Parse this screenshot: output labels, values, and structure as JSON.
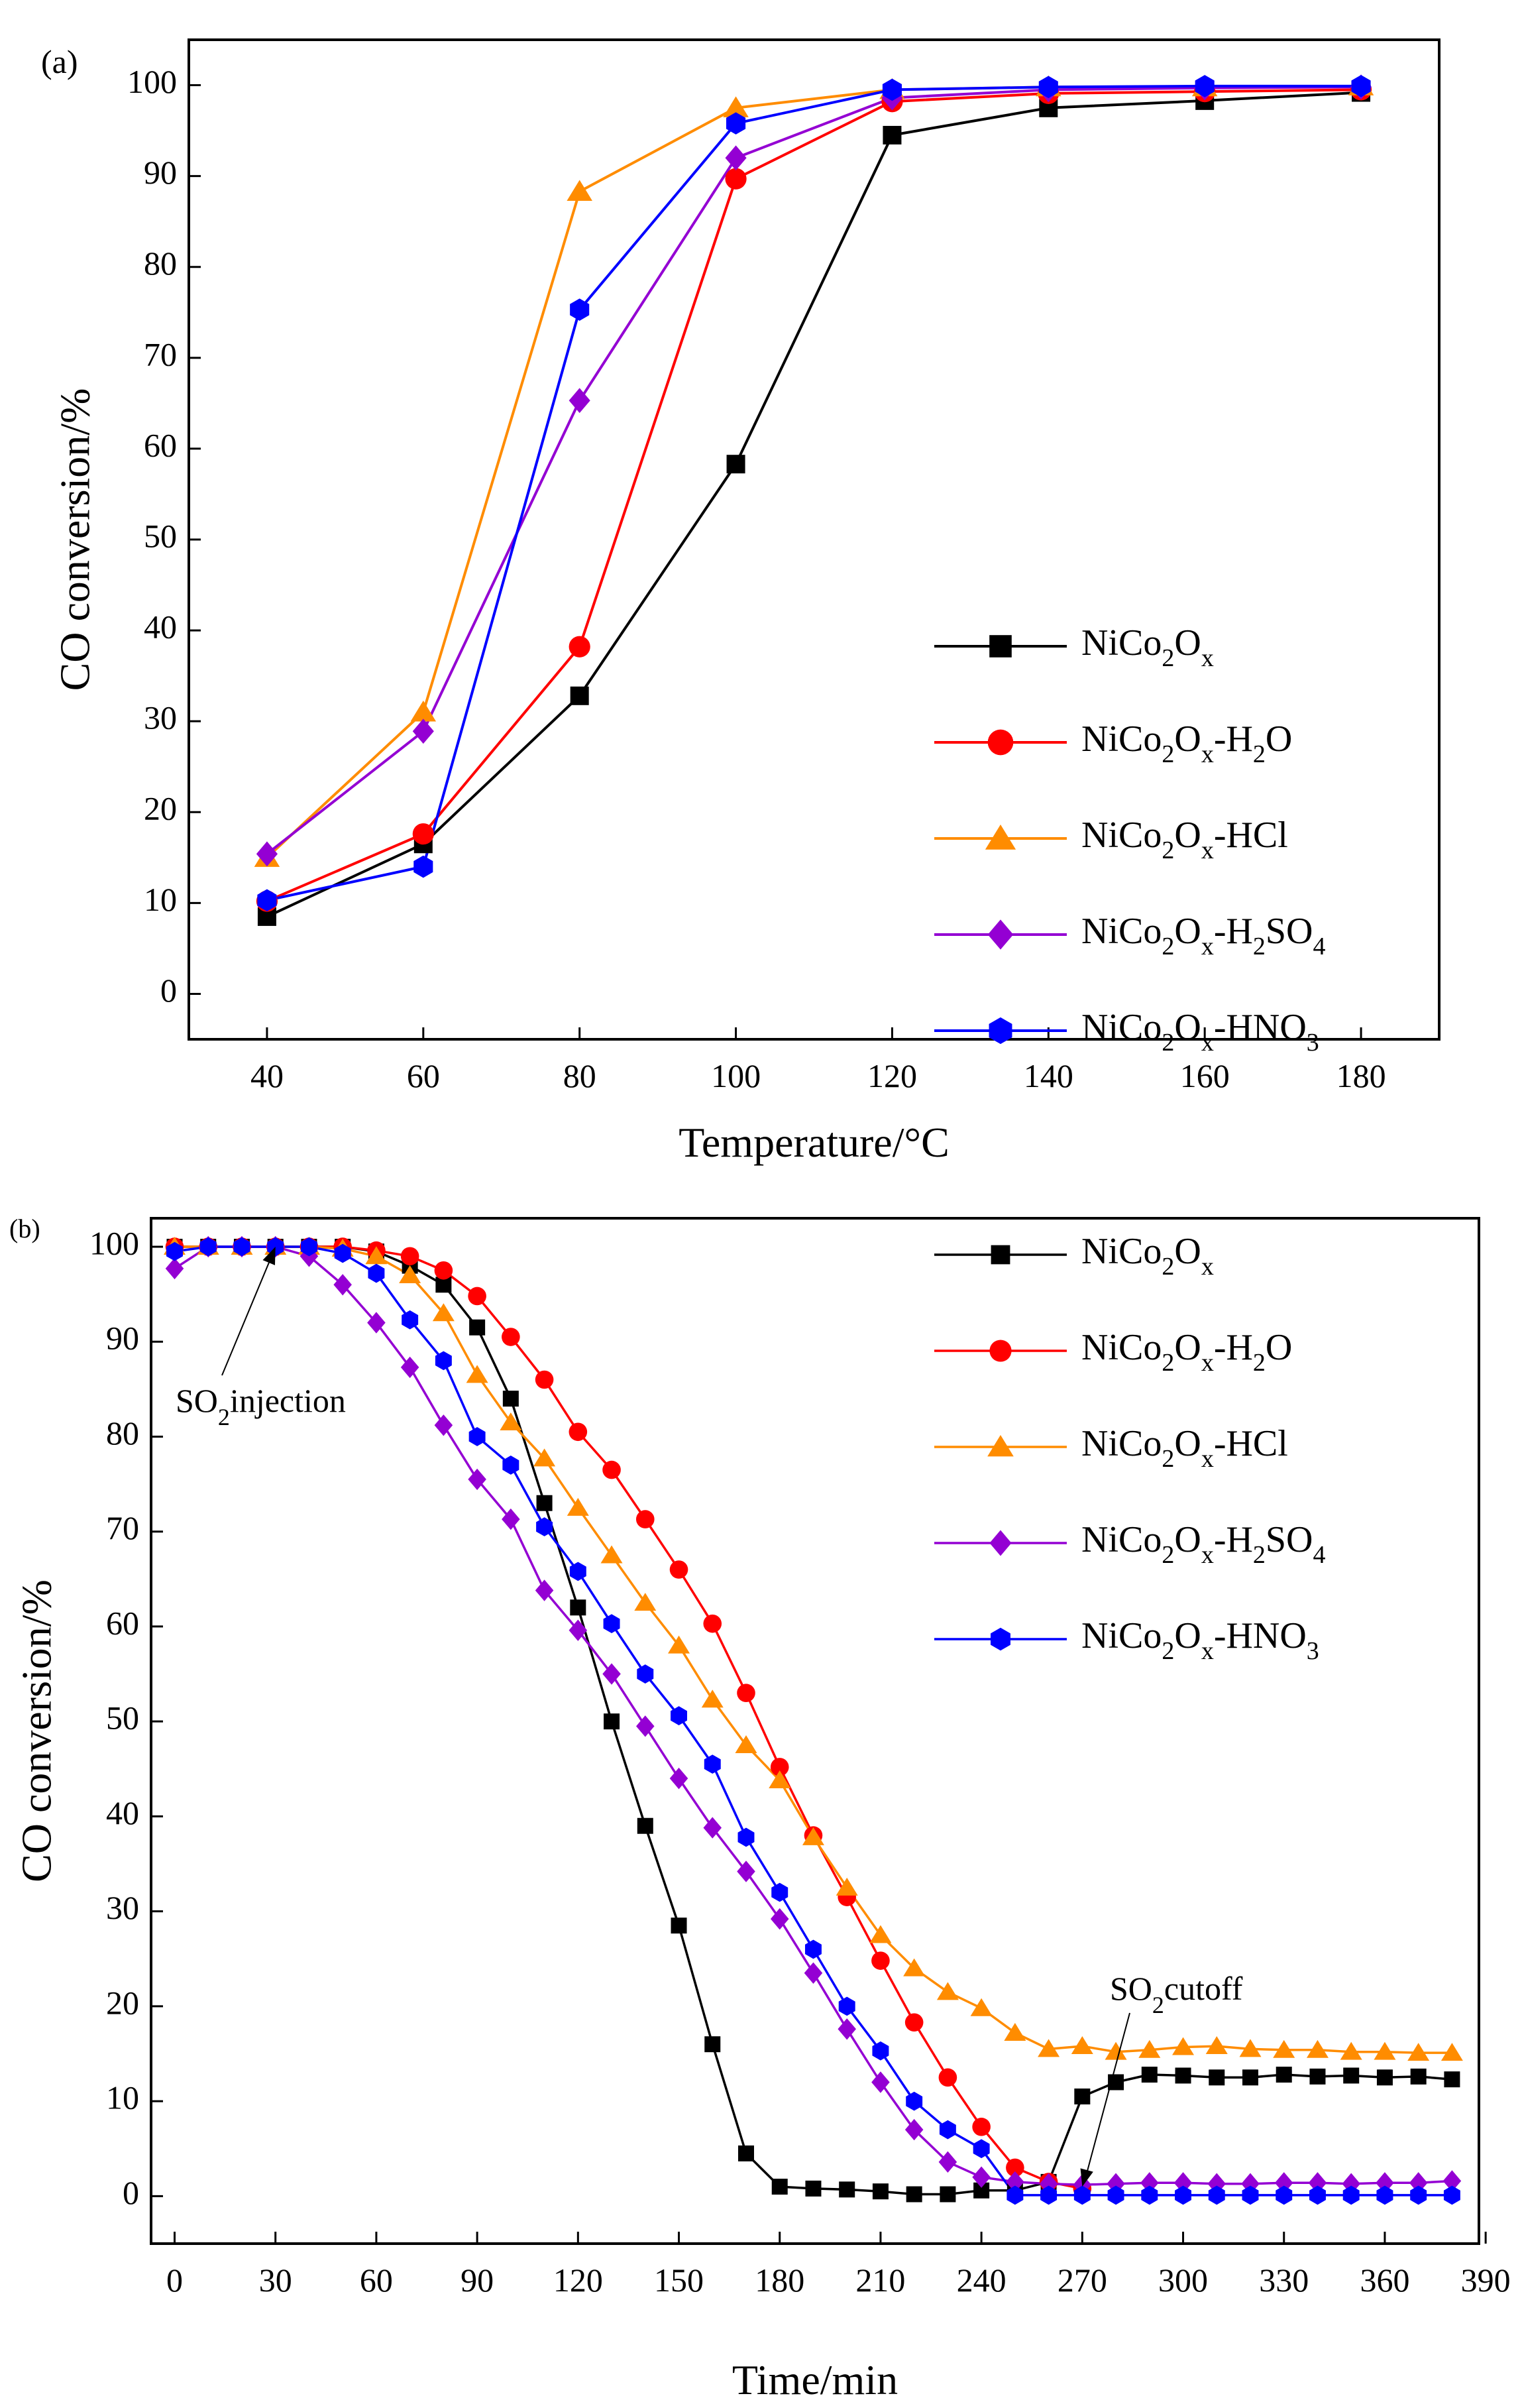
{
  "chart_data": [
    {
      "panel_label": "(a)",
      "type": "line",
      "xlabel": "Temperature/°C",
      "ylabel": "CO conversion/%",
      "xlim": [
        30,
        190
      ],
      "ylim": [
        -5,
        105
      ],
      "xticks": [
        40,
        60,
        80,
        100,
        120,
        140,
        160,
        180
      ],
      "yticks": [
        0,
        10,
        20,
        30,
        40,
        50,
        60,
        70,
        80,
        90,
        100
      ],
      "legend_position": "bottom-right",
      "x": [
        40,
        60,
        80,
        100,
        120,
        140,
        160,
        180
      ],
      "series": [
        {
          "name": "NiCo2Ox",
          "label": {
            "base": "NiCo",
            "s1": "2",
            "mid": "O",
            "s2": "x",
            "tail": []
          },
          "color": "#000000",
          "marker": "square",
          "values": [
            8.5,
            16.5,
            32.8,
            58.3,
            94.5,
            97.5,
            98.3,
            99.2
          ]
        },
        {
          "name": "NiCo2Ox-H2O",
          "label": {
            "base": "NiCo",
            "s1": "2",
            "mid": "O",
            "s2": "x",
            "tail": [
              [
                "-H",
                ""
              ],
              [
                "2",
                "sub"
              ],
              [
                "O",
                ""
              ]
            ]
          },
          "color": "#ff0000",
          "marker": "circle",
          "values": [
            10.2,
            17.6,
            38.2,
            89.7,
            98.2,
            99.1,
            99.3,
            99.5
          ]
        },
        {
          "name": "NiCo2Ox-HCl",
          "label": {
            "base": "NiCo",
            "s1": "2",
            "mid": "O",
            "s2": "x",
            "tail": [
              [
                "-HCl",
                ""
              ]
            ]
          },
          "color": "#ff8c00",
          "marker": "triangle",
          "values": [
            15.0,
            31.0,
            88.3,
            97.5,
            99.5,
            99.8,
            99.8,
            99.9
          ]
        },
        {
          "name": "NiCo2Ox-H2SO4",
          "label": {
            "base": "NiCo",
            "s1": "2",
            "mid": "O",
            "s2": "x",
            "tail": [
              [
                "-H",
                ""
              ],
              [
                "2",
                "sub"
              ],
              [
                "SO",
                ""
              ],
              [
                "4",
                "sub"
              ]
            ]
          },
          "color": "#9400d3",
          "marker": "diamond",
          "values": [
            15.4,
            28.9,
            65.3,
            92.0,
            98.6,
            99.5,
            99.7,
            99.8
          ]
        },
        {
          "name": "NiCo2Ox-HNO3",
          "label": {
            "base": "NiCo",
            "s1": "2",
            "mid": "O",
            "s2": "x",
            "tail": [
              [
                "-HNO",
                ""
              ],
              [
                "3",
                "sub"
              ]
            ]
          },
          "color": "#0000ff",
          "marker": "hexagon",
          "values": [
            10.3,
            14.0,
            75.3,
            95.8,
            99.5,
            99.8,
            99.9,
            99.9
          ]
        }
      ]
    },
    {
      "panel_label": "(b)",
      "type": "line",
      "xlabel": "Time/min",
      "ylabel": "CO conversion/%",
      "xlim": [
        -7,
        388
      ],
      "ylim": [
        -5,
        103
      ],
      "xticks": [
        0,
        30,
        60,
        90,
        120,
        150,
        180,
        210,
        240,
        270,
        300,
        330,
        360,
        390
      ],
      "yticks": [
        0,
        10,
        20,
        30,
        40,
        50,
        60,
        70,
        80,
        90,
        100
      ],
      "legend_position": "top-right",
      "annotations": [
        {
          "pre": "SO",
          "sub": "2",
          "post": "injection",
          "target_x": 30,
          "target_y": 100
        },
        {
          "pre": "SO",
          "sub": "2",
          "post": "cutoff",
          "target_x": 270,
          "target_y": 1
        }
      ],
      "series": [
        {
          "name": "NiCo2Ox",
          "label": {
            "base": "NiCo",
            "s1": "2",
            "mid": "O",
            "s2": "x",
            "tail": []
          },
          "color": "#000000",
          "marker": "square",
          "x": [
            0,
            10,
            20,
            30,
            40,
            50,
            60,
            70,
            80,
            90,
            100,
            110,
            120,
            130,
            140,
            150,
            160,
            170,
            180,
            190,
            200,
            210,
            220,
            230,
            240,
            250,
            260,
            270,
            280,
            290,
            300,
            310,
            320,
            330,
            340,
            350,
            360,
            370,
            380
          ],
          "values": [
            100,
            100,
            100,
            100,
            100,
            100,
            99.5,
            98,
            96,
            91.5,
            84,
            73,
            62,
            50,
            39,
            28.5,
            16,
            4.5,
            1,
            0.8,
            0.7,
            0.5,
            0.2,
            0.2,
            0.6,
            0.6,
            1.5,
            10.5,
            12,
            12.8,
            12.7,
            12.5,
            12.5,
            12.8,
            12.6,
            12.7,
            12.5,
            12.6,
            12.3
          ]
        },
        {
          "name": "NiCo2Ox-H2O",
          "label": {
            "base": "NiCo",
            "s1": "2",
            "mid": "O",
            "s2": "x",
            "tail": [
              [
                "-H",
                ""
              ],
              [
                "2",
                "sub"
              ],
              [
                "O",
                ""
              ]
            ]
          },
          "color": "#ff0000",
          "marker": "circle",
          "x": [
            0,
            10,
            20,
            30,
            40,
            50,
            60,
            70,
            80,
            90,
            100,
            110,
            120,
            130,
            140,
            150,
            160,
            170,
            180,
            190,
            200,
            210,
            220,
            230,
            240,
            250,
            260,
            270
          ],
          "values": [
            100,
            100,
            100,
            100,
            100,
            100,
            99.6,
            99,
            97.5,
            94.8,
            90.5,
            86,
            80.5,
            76.5,
            71.3,
            66,
            60.3,
            53,
            45.2,
            38,
            31.5,
            24.8,
            18.3,
            12.5,
            7.3,
            3,
            1.5,
            0.8
          ]
        },
        {
          "name": "NiCo2Ox-HCl",
          "label": {
            "base": "NiCo",
            "s1": "2",
            "mid": "O",
            "s2": "x",
            "tail": [
              [
                "-HCl",
                ""
              ]
            ]
          },
          "color": "#ff8c00",
          "marker": "triangle",
          "x": [
            0,
            10,
            20,
            30,
            40,
            50,
            60,
            70,
            80,
            90,
            100,
            110,
            120,
            130,
            140,
            150,
            160,
            170,
            180,
            190,
            200,
            210,
            220,
            230,
            240,
            250,
            260,
            270,
            280,
            290,
            300,
            310,
            320,
            330,
            340,
            350,
            360,
            370,
            380
          ],
          "values": [
            100,
            100,
            100,
            100,
            100,
            99.8,
            99,
            97,
            93,
            86.5,
            81.5,
            77.7,
            72.5,
            67.5,
            62.5,
            58,
            52.3,
            47.5,
            43.8,
            37.8,
            32.5,
            27.5,
            24,
            21.5,
            19.8,
            17.2,
            15.5,
            15.8,
            15.2,
            15.4,
            15.7,
            15.8,
            15.5,
            15.4,
            15.4,
            15.2,
            15.2,
            15.1,
            15.1
          ]
        },
        {
          "name": "NiCo2Ox-H2SO4",
          "label": {
            "base": "NiCo",
            "s1": "2",
            "mid": "O",
            "s2": "x",
            "tail": [
              [
                "-H",
                ""
              ],
              [
                "2",
                "sub"
              ],
              [
                "SO",
                ""
              ],
              [
                "4",
                "sub"
              ]
            ]
          },
          "color": "#9400d3",
          "marker": "diamond",
          "x": [
            0,
            10,
            20,
            30,
            40,
            50,
            60,
            70,
            80,
            90,
            100,
            110,
            120,
            130,
            140,
            150,
            160,
            170,
            180,
            190,
            200,
            210,
            220,
            230,
            240,
            250,
            260,
            270,
            280,
            290,
            300,
            310,
            320,
            330,
            340,
            350,
            360,
            370,
            380
          ],
          "values": [
            97.7,
            100,
            100,
            100,
            99,
            96,
            92,
            87.3,
            81.2,
            75.5,
            71.3,
            63.8,
            59.6,
            55,
            49.5,
            44,
            38.8,
            34.2,
            29.2,
            23.5,
            17.6,
            12,
            7,
            3.6,
            2,
            1.5,
            1.3,
            1.2,
            1.3,
            1.4,
            1.4,
            1.3,
            1.3,
            1.4,
            1.4,
            1.3,
            1.4,
            1.4,
            1.6
          ]
        },
        {
          "name": "NiCo2Ox-HNO3",
          "label": {
            "base": "NiCo",
            "s1": "2",
            "mid": "O",
            "s2": "x",
            "tail": [
              [
                "-HNO",
                ""
              ],
              [
                "3",
                "sub"
              ]
            ]
          },
          "color": "#0000ff",
          "marker": "hexagon",
          "x": [
            0,
            10,
            20,
            30,
            40,
            50,
            60,
            70,
            80,
            90,
            100,
            110,
            120,
            130,
            140,
            150,
            160,
            170,
            180,
            190,
            200,
            210,
            220,
            230,
            240,
            250,
            260,
            270,
            280,
            290,
            300,
            310,
            320,
            330,
            340,
            350,
            360,
            370,
            380
          ],
          "values": [
            99.5,
            100,
            100,
            100,
            100,
            99.3,
            97.2,
            92.3,
            88,
            80,
            77,
            70.5,
            65.8,
            60.3,
            55,
            50.6,
            45.5,
            37.8,
            32,
            26,
            20,
            15.3,
            10,
            7,
            5,
            0.1,
            0.1,
            0.1,
            0.1,
            0.1,
            0.1,
            0.1,
            0.1,
            0.1,
            0.1,
            0.1,
            0.1,
            0.1,
            0.1
          ]
        }
      ]
    }
  ]
}
